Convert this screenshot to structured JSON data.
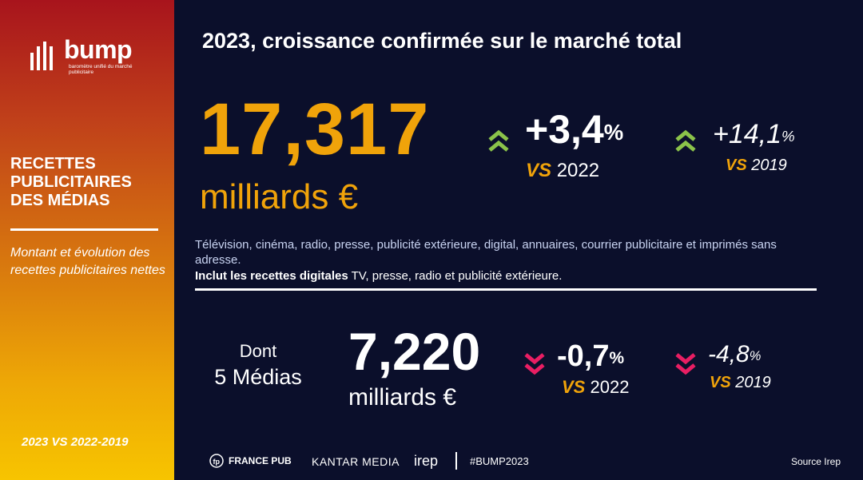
{
  "brand": {
    "name": "bump",
    "tagline": "baromètre unifié du marché publicitaire",
    "color_gradient": [
      "#a8141c",
      "#f7c400"
    ]
  },
  "sidebar": {
    "title": "RECETTES PUBLICITAIRES DES MÉDIAS",
    "subtitle": "Montant et évolution des recettes publicitaires nettes",
    "footer": "2023 VS 2022-2019"
  },
  "main": {
    "title": "2023, croissance confirmée sur le marché total",
    "total": {
      "value": "17,317",
      "unit": "milliards €",
      "change_2022": {
        "value": "+3,4",
        "sup": "%",
        "label_key": "VS",
        "label_year": "2022",
        "direction": "up"
      },
      "change_2019": {
        "value": "+14,1",
        "sup": "%",
        "label_key": "VS",
        "label_year": "2019",
        "direction": "up"
      }
    },
    "description": "Télévision, cinéma, radio, presse, publicité extérieure, digital, annuaires, courrier publicitaire et imprimés sans adresse.",
    "description_bold": "Inclut les recettes digitales",
    "description_rest": " TV, presse, radio et publicité extérieure.",
    "subset": {
      "label_line1": "Dont",
      "label_line2": "5 Médias",
      "value": "7,220",
      "unit": "milliards €",
      "change_2022": {
        "value": "-0,7",
        "sup": "%",
        "label_key": "VS",
        "label_year": "2022",
        "direction": "down"
      },
      "change_2019": {
        "value": "-4,8",
        "sup": "%",
        "label_key": "VS",
        "label_year": "2019",
        "direction": "down"
      }
    }
  },
  "colors": {
    "background": "#0b0f2b",
    "accent_orange": "#f0a30a",
    "up_green": "#8bc34a",
    "down_pink": "#e91e63"
  },
  "footer": {
    "partners": [
      "FRANCE PUB",
      "KANTAR MEDIA",
      "irep"
    ],
    "hashtag": "#BUMP2023",
    "source": "Source Irep"
  }
}
